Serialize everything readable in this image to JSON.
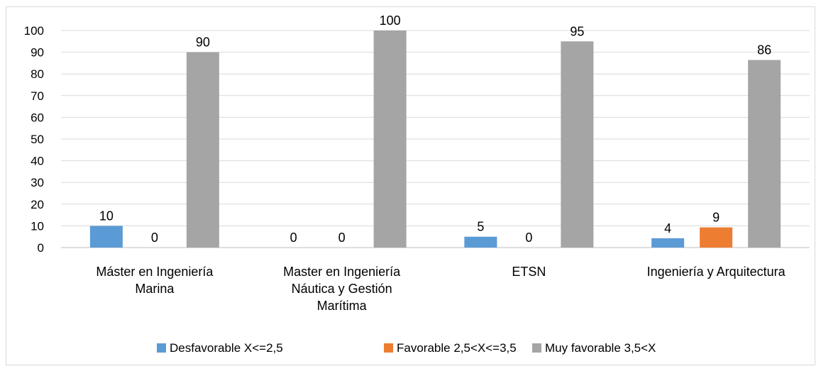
{
  "chart_data": {
    "type": "bar",
    "categories": [
      [
        "Máster en Ingeniería",
        "Marina"
      ],
      [
        "Master en Ingeniería",
        "Náutica y Gestión",
        "Marítima"
      ],
      [
        "ETSN"
      ],
      [
        "Ingeniería y Arquitectura"
      ]
    ],
    "series": [
      {
        "name": "Desfavorable X<=2,5",
        "color": "#5b9bd5",
        "values": [
          10,
          0,
          5,
          4.3
        ]
      },
      {
        "name": "Favorable 2,5<X<=3,5",
        "color": "#ed7d31",
        "values": [
          0,
          0,
          0,
          9.3
        ]
      },
      {
        "name": "Muy favorable 3,5<X",
        "color": "#a5a5a5",
        "values": [
          90,
          100,
          95,
          86.4
        ]
      }
    ],
    "data_labels": [
      [
        "10",
        "0",
        "5",
        "4"
      ],
      [
        "0",
        "0",
        "0",
        "9"
      ],
      [
        "90",
        "100",
        "95",
        "86"
      ]
    ],
    "ylim": [
      0,
      100
    ],
    "yticks": [
      0,
      10,
      20,
      30,
      40,
      50,
      60,
      70,
      80,
      90,
      100
    ],
    "grid": true,
    "legend_position": "bottom",
    "title": "",
    "xlabel": "",
    "ylabel": ""
  }
}
